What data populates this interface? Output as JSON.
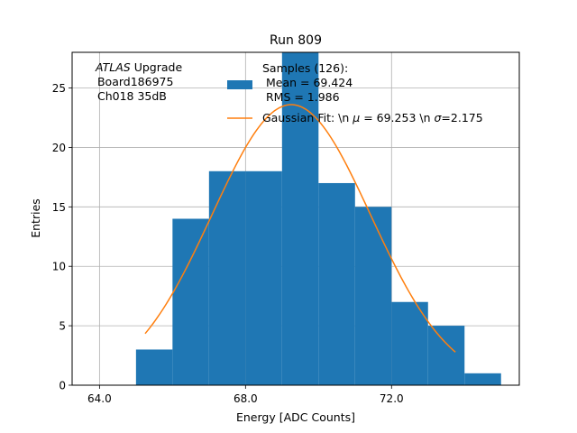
{
  "chart_data": {
    "type": "bar",
    "title": "Run 809",
    "xlabel": "Energy [ADC Counts]",
    "ylabel": "Entries",
    "xlim": [
      63.25,
      75.5
    ],
    "ylim": [
      0,
      28
    ],
    "xticks": [
      64.0,
      68.0,
      72.0
    ],
    "xtick_labels": [
      "64.0",
      "68.0",
      "72.0"
    ],
    "yticks": [
      0,
      5,
      10,
      15,
      20,
      25
    ],
    "ytick_labels": [
      "0",
      "5",
      "10",
      "15",
      "20",
      "25"
    ],
    "grid": true,
    "histogram": {
      "bin_edges": [
        65,
        66,
        67,
        68,
        69,
        70,
        71,
        72,
        73,
        74,
        75
      ],
      "counts": [
        3,
        14,
        18,
        18,
        28,
        17,
        15,
        7,
        5,
        1
      ],
      "color": "#1f77b4"
    },
    "fit": {
      "type": "gaussian",
      "mu": 69.253,
      "sigma": 2.175,
      "amplitude": 23.6,
      "x_start": 65.25,
      "x_end": 73.75,
      "color": "#ff7f0e"
    },
    "annotation": {
      "italic": "ATLAS",
      "rest": " Upgrade",
      "line2": " Board186975",
      "line3": " Ch018 35dB"
    },
    "legend": {
      "placement": "top-right",
      "hist_label_lines": [
        "Samples (126):",
        " Mean = 69.424",
        " RMS = 1.986"
      ],
      "fit_label_prefix": "Gaussian Fit: \\n ",
      "fit_label_mu_symbol": "μ",
      "fit_label_mid": " = 69.253 \\n ",
      "fit_label_sigma_symbol": "σ",
      "fit_label_suffix": "=2.175"
    }
  }
}
